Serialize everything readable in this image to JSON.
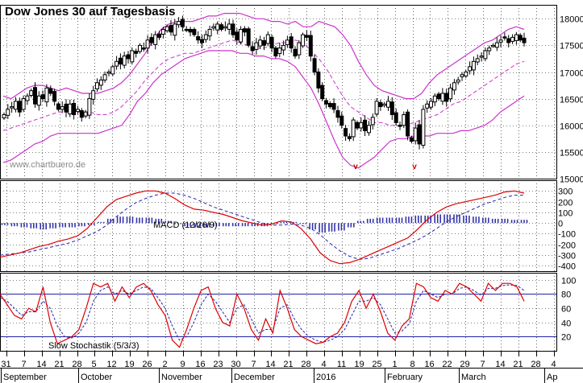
{
  "title": "Dow Jones 30 auf Tagesbasis",
  "watermark": "www.chartbuero.de",
  "colors": {
    "candles": "#000000",
    "bollinger": "#cc33cc",
    "macd_line": "#dd0000",
    "signal_line": "#2222aa",
    "histogram": "#3333aa",
    "stoch_k": "#dd0000",
    "stoch_d": "#2222aa",
    "ref_lines": "#2222aa",
    "grid": "#000000"
  },
  "chart_data": [
    {
      "type": "candlestick",
      "name": "price",
      "ylim": [
        15000,
        18200
      ],
      "yticks": [
        15000,
        15500,
        16000,
        16500,
        17000,
        17500,
        18000
      ],
      "x_tick_labels": [
        "31",
        "7",
        "14",
        "21",
        "28",
        "5",
        "12",
        "19",
        "26",
        "2",
        "9",
        "16",
        "23",
        "30",
        "7",
        "14",
        "21",
        "28",
        "4",
        "11",
        "19",
        "25",
        "1",
        "8",
        "16",
        "22",
        "29",
        "7",
        "14",
        "21",
        "28",
        "4"
      ],
      "month_labels": [
        "September",
        "October",
        "November",
        "December",
        "2016",
        "February",
        "March",
        "Ap"
      ],
      "close": [
        16200,
        16300,
        16350,
        16450,
        16250,
        16500,
        16550,
        16650,
        16400,
        16550,
        16500,
        16700,
        16600,
        16450,
        16300,
        16350,
        16250,
        16400,
        16200,
        16300,
        16150,
        16250,
        16500,
        16650,
        16800,
        16850,
        16950,
        17000,
        17100,
        17200,
        17150,
        17300,
        17250,
        17400,
        17350,
        17500,
        17450,
        17600,
        17550,
        17700,
        17650,
        17800,
        17850,
        17750,
        17900,
        17950,
        17850,
        17800,
        17750,
        17700,
        17600,
        17550,
        17700,
        17800,
        17850,
        17900,
        17800,
        17850,
        17900,
        17700,
        17600,
        17800,
        17750,
        17500,
        17400,
        17550,
        17600,
        17500,
        17700,
        17450,
        17300,
        17450,
        17500,
        17600,
        17450,
        17300,
        17550,
        17700,
        17650,
        17300,
        17000,
        16700,
        16500,
        16400,
        16350,
        16300,
        16150,
        16000,
        15800,
        15750,
        16100,
        15950,
        16050,
        15900,
        16000,
        16150,
        16450,
        16350,
        16400,
        16450,
        16200,
        16050,
        16000,
        16200,
        15800,
        15700,
        15950,
        15650,
        16300,
        16400,
        16450,
        16550,
        16500,
        16600,
        16450,
        16700,
        16800,
        16850,
        16950,
        17000,
        17100,
        17200,
        17250,
        17300,
        17400,
        17450,
        17500,
        17550,
        17600,
        17650,
        17550,
        17650,
        17700,
        17600,
        17550
      ],
      "bollinger": {
        "upper": [
          16550,
          16500,
          16600,
          16700,
          16750,
          16750,
          16700,
          16650,
          16700,
          16650,
          16600,
          16600,
          16600,
          16650,
          16700,
          16800,
          16950,
          17150,
          17350,
          17600,
          17800,
          17900,
          17950,
          17950,
          17950,
          18000,
          18050,
          18050,
          18100,
          18100,
          18100,
          18050,
          18000,
          18000,
          17950,
          17950,
          17900,
          17950,
          17850,
          17850,
          17950,
          17900,
          17850,
          17700,
          17500,
          17200,
          16950,
          16750,
          16650,
          16600,
          16550,
          16500,
          16500,
          16600,
          16800,
          16950,
          17050,
          17150,
          17250,
          17350,
          17450,
          17550,
          17600,
          17700,
          17800,
          17850,
          17800
        ],
        "middle": [
          15900,
          15950,
          16000,
          16050,
          16100,
          16150,
          16200,
          16250,
          16250,
          16250,
          16250,
          16250,
          16200,
          16200,
          16250,
          16350,
          16500,
          16650,
          16850,
          17000,
          17150,
          17250,
          17300,
          17350,
          17350,
          17400,
          17450,
          17500,
          17550,
          17600,
          17550,
          17500,
          17450,
          17450,
          17500,
          17550,
          17550,
          17600,
          17550,
          17400,
          17250,
          17050,
          16800,
          16550,
          16350,
          16250,
          16150,
          16050,
          16050,
          16000,
          16000,
          16000,
          16050,
          16100,
          16150,
          16200,
          16300,
          16400,
          16450,
          16550,
          16650,
          16750,
          16850,
          16950,
          17050,
          17150,
          17200
        ],
        "lower": [
          15300,
          15350,
          15450,
          15550,
          15650,
          15700,
          15800,
          15850,
          15850,
          15850,
          15850,
          15850,
          15850,
          15900,
          15950,
          16000,
          16200,
          16450,
          16600,
          16800,
          16950,
          17050,
          17150,
          17250,
          17300,
          17350,
          17400,
          17400,
          17400,
          17400,
          17350,
          17350,
          17300,
          17300,
          17250,
          17250,
          17200,
          17100,
          16900,
          16700,
          16400,
          16050,
          15700,
          15400,
          15250,
          15200,
          15300,
          15400,
          15550,
          15700,
          15750,
          15750,
          15800,
          15800,
          15800,
          15850,
          15850,
          15850,
          15900,
          15900,
          15950,
          16000,
          16100,
          16250,
          16350,
          16450,
          16550
        ]
      },
      "annotations": [
        "v",
        "v"
      ]
    },
    {
      "type": "line",
      "name": "MACD",
      "label": "MACD (12/26/9)",
      "ylim": [
        -450,
        400
      ],
      "yticks": [
        -400,
        -300,
        -200,
        -100,
        0,
        100,
        200,
        300
      ],
      "macd": [
        -320,
        -300,
        -280,
        -250,
        -220,
        -200,
        -170,
        -150,
        -120,
        -50,
        50,
        150,
        220,
        250,
        280,
        300,
        300,
        280,
        230,
        170,
        130,
        120,
        100,
        80,
        50,
        20,
        0,
        -20,
        -10,
        20,
        10,
        -50,
        -150,
        -280,
        -350,
        -380,
        -370,
        -340,
        -300,
        -260,
        -220,
        -180,
        -140,
        -60,
        30,
        100,
        150,
        180,
        200,
        220,
        240,
        260,
        290,
        300,
        280
      ],
      "signal": [
        -300,
        -290,
        -280,
        -270,
        -250,
        -230,
        -210,
        -190,
        -160,
        -120,
        -80,
        -20,
        60,
        130,
        190,
        230,
        260,
        280,
        280,
        260,
        230,
        190,
        150,
        120,
        90,
        60,
        30,
        0,
        -20,
        -20,
        -10,
        -20,
        -50,
        -110,
        -190,
        -260,
        -310,
        -340,
        -330,
        -300,
        -270,
        -240,
        -200,
        -160,
        -110,
        -50,
        10,
        60,
        100,
        140,
        180,
        210,
        240,
        260,
        260
      ],
      "histogram": [
        -20,
        -30,
        -40,
        -50,
        -60,
        -50,
        -40,
        -40,
        -30,
        -20,
        10,
        40,
        60,
        60,
        50,
        50,
        40,
        20,
        -10,
        -30,
        -40,
        -40,
        -30,
        -30,
        -30,
        -30,
        -30,
        -30,
        -10,
        10,
        10,
        -10,
        -60,
        -90,
        -80,
        -70,
        -40,
        20,
        40,
        50,
        50,
        50,
        60,
        70,
        70,
        80,
        80,
        80,
        70,
        60,
        50,
        40,
        40,
        30,
        30
      ]
    },
    {
      "type": "line",
      "name": "Slow Stochastik",
      "label": "Slow Stochastik (5/3/3)",
      "ylim": [
        0,
        110
      ],
      "yticks": [
        20,
        40,
        60,
        80,
        100
      ],
      "ref_levels": [
        20,
        80
      ],
      "k": [
        80,
        65,
        50,
        45,
        60,
        55,
        90,
        40,
        10,
        15,
        20,
        30,
        60,
        95,
        90,
        95,
        70,
        90,
        75,
        90,
        95,
        85,
        65,
        50,
        15,
        5,
        30,
        60,
        85,
        90,
        60,
        40,
        35,
        80,
        60,
        30,
        15,
        45,
        25,
        85,
        60,
        30,
        20,
        15,
        10,
        12,
        20,
        25,
        40,
        70,
        85,
        60,
        80,
        55,
        25,
        15,
        35,
        45,
        95,
        90,
        75,
        70,
        85,
        80,
        95,
        90,
        80,
        70,
        95,
        85,
        95,
        95,
        90,
        70
      ],
      "d": [
        75,
        70,
        60,
        50,
        55,
        55,
        70,
        60,
        35,
        20,
        18,
        25,
        40,
        70,
        85,
        90,
        80,
        85,
        80,
        85,
        90,
        88,
        75,
        60,
        35,
        15,
        20,
        40,
        65,
        80,
        70,
        55,
        40,
        60,
        65,
        45,
        25,
        30,
        30,
        60,
        65,
        45,
        30,
        20,
        15,
        12,
        15,
        20,
        30,
        50,
        70,
        70,
        75,
        65,
        45,
        25,
        28,
        38,
        70,
        85,
        80,
        75,
        80,
        80,
        88,
        90,
        85,
        78,
        88,
        88,
        92,
        93,
        92,
        85
      ]
    }
  ]
}
